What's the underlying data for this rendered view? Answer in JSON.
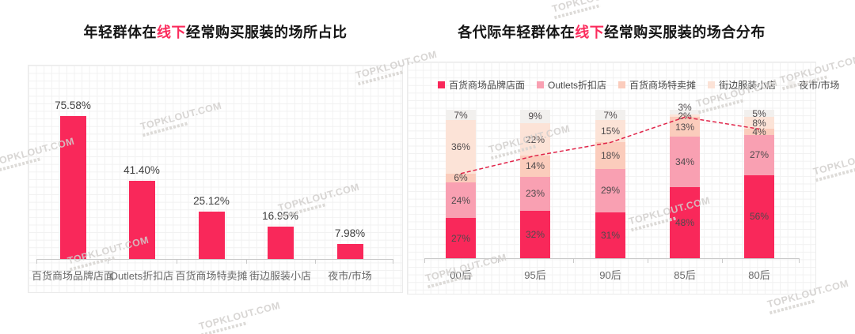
{
  "watermark": {
    "text": "TOPKLOUT.COM"
  },
  "charts": {
    "left": {
      "title": {
        "prefix": "年轻群体在",
        "highlight": "线下",
        "suffix": "经常购买服装的场所占比"
      },
      "chart_data": {
        "type": "bar",
        "title": "年轻群体在线下经常购买服装的场所占比",
        "categories": [
          "百货商场品牌店面",
          "Outlets折扣店",
          "百货商场特卖摊",
          "街边服装小店",
          "夜市/市场"
        ],
        "values": [
          75.58,
          41.4,
          25.12,
          16.95,
          7.98
        ],
        "value_labels": [
          "75.58%",
          "41.40%",
          "25.12%",
          "16.95%",
          "7.98%"
        ],
        "bar_color": "#f9285a",
        "xlabel": "",
        "ylabel": "",
        "ylim": [
          0,
          100
        ],
        "grid": "fine-square-background",
        "legend_position": "none"
      }
    },
    "right": {
      "title": {
        "prefix": "各代际年轻群体在",
        "highlight": "线下",
        "suffix": "经常购买服装的场合分布"
      },
      "chart_data": {
        "type": "stacked-bar",
        "title": "各代际年轻群体在线下经常购买服装的场合分布",
        "categories": [
          "00后",
          "95后",
          "90后",
          "85后",
          "80后"
        ],
        "series": [
          {
            "name": "百货商场品牌店面",
            "color": "#f9285a",
            "values": [
              27,
              32,
              31,
              48,
              56
            ]
          },
          {
            "name": "Outlets折扣店",
            "color": "#f9a0b2",
            "values": [
              24,
              23,
              29,
              34,
              27
            ]
          },
          {
            "name": "百货商场特卖摊",
            "color": "#fbccbc",
            "values": [
              6,
              14,
              18,
              13,
              4
            ]
          },
          {
            "name": "街边服装小店",
            "color": "#fce3d7",
            "values": [
              36,
              22,
              15,
              2,
              8
            ]
          },
          {
            "name": "夜市/市场",
            "color": "#f2f0ee",
            "values": [
              7,
              9,
              7,
              3,
              5
            ]
          }
        ],
        "trendline": {
          "description": "dashed line through cumulative share of bottom three series",
          "color": "#e02348",
          "dashed": true,
          "values": [
            57,
            69,
            78,
            95,
            87
          ]
        },
        "legend_position": "top",
        "ylim": [
          0,
          100
        ],
        "grid": "fine-square-background"
      }
    }
  }
}
